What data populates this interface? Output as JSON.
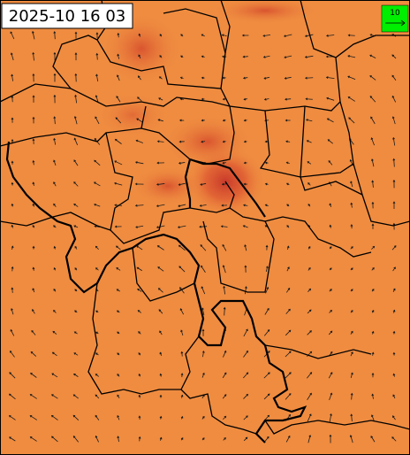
{
  "timestamp": "2025-10 16 03",
  "legend": {
    "label": "10"
  }
}
